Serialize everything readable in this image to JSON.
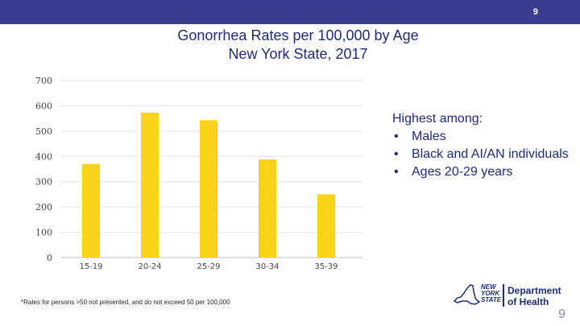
{
  "header": {
    "slide_number": "9"
  },
  "title": {
    "line1": "Gonorrhea Rates per 100,000 by Age",
    "line2": "New York State, 2017"
  },
  "highlights": {
    "heading": "Highest among:",
    "items": [
      "Males",
      "Black and AI/AN individuals",
      "Ages 20-29 years"
    ]
  },
  "footnote": "*Rates for persons >50 not presented, and do not exceed 50 per 100,000",
  "logo": {
    "nys_lines": [
      "NEW",
      "YORK",
      "STATE"
    ],
    "doh_lines": [
      "Department",
      "of Health"
    ]
  },
  "page_number": "9",
  "colors": {
    "bar": "#f7d417",
    "header_bar": "#3a3d8f",
    "title": "#1f2a7a"
  },
  "chart_data": {
    "type": "bar",
    "title": "Gonorrhea Rates per 100,000 by Age New York State, 2017",
    "xlabel": "",
    "ylabel": "",
    "categories": [
      "15-19",
      "20-24",
      "25-29",
      "30-34",
      "35-39"
    ],
    "values": [
      370,
      573,
      543,
      388,
      250
    ],
    "ylim": [
      0,
      700
    ],
    "yticks": [
      0,
      100,
      200,
      300,
      400,
      500,
      600,
      700
    ],
    "grid": true,
    "legend": "none"
  }
}
